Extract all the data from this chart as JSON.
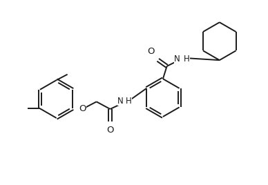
{
  "bg_color": "#ffffff",
  "line_color": "#1a1a1a",
  "line_width": 1.4,
  "font_size": 8.5,
  "fig_width": 3.88,
  "fig_height": 2.68,
  "dpi": 100,
  "xlim": [
    0,
    10
  ],
  "ylim": [
    0,
    7
  ]
}
